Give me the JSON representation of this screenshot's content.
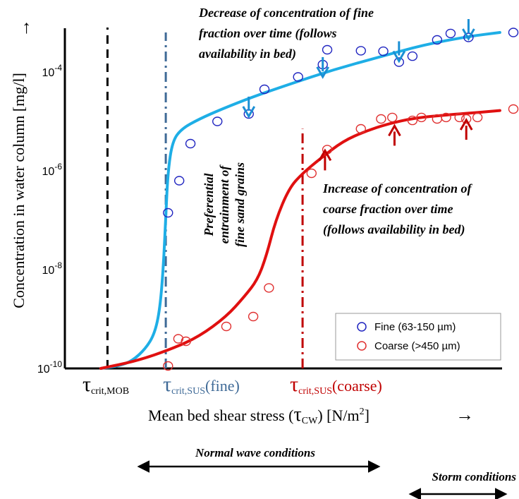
{
  "chart_data": {
    "type": "scatter",
    "title": "",
    "ylabel": "Concentration in water column [mg/l]",
    "xlabel": "Mean bed shear stress (τ_CW) [N/m²]",
    "xlabel_parts": {
      "prefix": "Mean bed shear stress (",
      "symbol": "τ",
      "sub": "CW",
      "mid": ") [N/m",
      "sup": "2",
      "suffix": "]"
    },
    "yscale": "log",
    "ylim_exp": [
      -10,
      -3
    ],
    "xlim": [
      0,
      100
    ],
    "y_ticks": [
      {
        "base": "10",
        "exp": "-10",
        "value_exp": -10
      },
      {
        "base": "10",
        "exp": "-8",
        "value_exp": -8
      },
      {
        "base": "10",
        "exp": "-6",
        "value_exp": -6
      },
      {
        "base": "10",
        "exp": "-4",
        "value_exp": -4
      }
    ],
    "x_threshold_labels": [
      {
        "symbol": "τ",
        "sub": "crit,MOB",
        "suffix": "",
        "x": 8
      },
      {
        "symbol": "τ",
        "sub": "crit,SUS",
        "suffix": "(fine)",
        "x": 22.5
      },
      {
        "symbol": "τ",
        "sub": "crit,SUS",
        "suffix": "(coarse)",
        "x": 53
      }
    ],
    "thresholds": [
      {
        "x": 9.5,
        "y_top_exp": -3.1,
        "color": "#000000",
        "style": "dashed"
      },
      {
        "x": 22.5,
        "y_top_exp": -3.2,
        "color": "#3f6a97",
        "style": "dashdot"
      },
      {
        "x": 53,
        "y_top_exp": -5.15,
        "color": "#c00000",
        "style": "dashdot"
      }
    ],
    "series": [
      {
        "name": "Fine (63-150 µm)",
        "color": "#1f24c0",
        "points": [
          {
            "x": 23,
            "y_exp": -6.85
          },
          {
            "x": 25.5,
            "y_exp": -6.2
          },
          {
            "x": 28,
            "y_exp": -5.45
          },
          {
            "x": 34,
            "y_exp": -5.0
          },
          {
            "x": 41,
            "y_exp": -4.85
          },
          {
            "x": 44.5,
            "y_exp": -4.35
          },
          {
            "x": 52,
            "y_exp": -4.1
          },
          {
            "x": 57.5,
            "y_exp": -3.85
          },
          {
            "x": 58.5,
            "y_exp": -3.55
          },
          {
            "x": 66,
            "y_exp": -3.57
          },
          {
            "x": 71,
            "y_exp": -3.58
          },
          {
            "x": 74.5,
            "y_exp": -3.8
          },
          {
            "x": 77.5,
            "y_exp": -3.68
          },
          {
            "x": 83,
            "y_exp": -3.35
          },
          {
            "x": 86,
            "y_exp": -3.22
          },
          {
            "x": 90,
            "y_exp": -3.3
          },
          {
            "x": 100,
            "y_exp": -3.2
          }
        ]
      },
      {
        "name": "Coarse (>450 µm)",
        "color": "#e03030",
        "points": [
          {
            "x": 23,
            "y_exp": -9.95
          },
          {
            "x": 25.3,
            "y_exp": -9.4
          },
          {
            "x": 27,
            "y_exp": -9.45
          },
          {
            "x": 36,
            "y_exp": -9.15
          },
          {
            "x": 42,
            "y_exp": -8.95
          },
          {
            "x": 45.5,
            "y_exp": -8.37
          },
          {
            "x": 55,
            "y_exp": -6.05
          },
          {
            "x": 58.5,
            "y_exp": -5.57
          },
          {
            "x": 66,
            "y_exp": -5.15
          },
          {
            "x": 70.5,
            "y_exp": -4.95
          },
          {
            "x": 73,
            "y_exp": -4.92
          },
          {
            "x": 77.5,
            "y_exp": -4.98
          },
          {
            "x": 79.5,
            "y_exp": -4.92
          },
          {
            "x": 83,
            "y_exp": -4.95
          },
          {
            "x": 85,
            "y_exp": -4.92
          },
          {
            "x": 88,
            "y_exp": -4.92
          },
          {
            "x": 89.5,
            "y_exp": -4.95
          },
          {
            "x": 92,
            "y_exp": -4.92
          },
          {
            "x": 100,
            "y_exp": -4.75
          }
        ]
      }
    ],
    "curves": [
      {
        "name": "fine trend",
        "color": "#1eaee6",
        "points": [
          {
            "x": 8,
            "y_exp": -10
          },
          {
            "x": 12,
            "y_exp": -9.95
          },
          {
            "x": 15,
            "y_exp": -9.85
          },
          {
            "x": 18,
            "y_exp": -9.6
          },
          {
            "x": 20,
            "y_exp": -9.3
          },
          {
            "x": 21.2,
            "y_exp": -8.8
          },
          {
            "x": 22,
            "y_exp": -7.9
          },
          {
            "x": 22.5,
            "y_exp": -6.9
          },
          {
            "x": 23,
            "y_exp": -6.0
          },
          {
            "x": 24,
            "y_exp": -5.4
          },
          {
            "x": 26,
            "y_exp": -5.15
          },
          {
            "x": 30,
            "y_exp": -4.95
          },
          {
            "x": 35,
            "y_exp": -4.75
          },
          {
            "x": 42,
            "y_exp": -4.5
          },
          {
            "x": 50,
            "y_exp": -4.25
          },
          {
            "x": 60,
            "y_exp": -3.95
          },
          {
            "x": 70,
            "y_exp": -3.7
          },
          {
            "x": 80,
            "y_exp": -3.45
          },
          {
            "x": 90,
            "y_exp": -3.28
          },
          {
            "x": 97,
            "y_exp": -3.2
          }
        ]
      },
      {
        "name": "coarse trend",
        "color": "#e01010",
        "points": [
          {
            "x": 8,
            "y_exp": -10
          },
          {
            "x": 16,
            "y_exp": -9.85
          },
          {
            "x": 24,
            "y_exp": -9.6
          },
          {
            "x": 30,
            "y_exp": -9.35
          },
          {
            "x": 36,
            "y_exp": -8.95
          },
          {
            "x": 40,
            "y_exp": -8.55
          },
          {
            "x": 43,
            "y_exp": -8.2
          },
          {
            "x": 45,
            "y_exp": -7.7
          },
          {
            "x": 47,
            "y_exp": -7.0
          },
          {
            "x": 50,
            "y_exp": -6.35
          },
          {
            "x": 53,
            "y_exp": -6.05
          },
          {
            "x": 57,
            "y_exp": -5.75
          },
          {
            "x": 62,
            "y_exp": -5.4
          },
          {
            "x": 67,
            "y_exp": -5.2
          },
          {
            "x": 72,
            "y_exp": -5.05
          },
          {
            "x": 78,
            "y_exp": -4.93
          },
          {
            "x": 85,
            "y_exp": -4.87
          },
          {
            "x": 92,
            "y_exp": -4.82
          },
          {
            "x": 97,
            "y_exp": -4.78
          }
        ]
      }
    ],
    "arrows": [
      {
        "x": 41,
        "y_exp": -4.87,
        "dir": "down",
        "color": "#1a8fd4"
      },
      {
        "x": 57.5,
        "y_exp": -4.07,
        "dir": "down",
        "color": "#1a8fd4"
      },
      {
        "x": 74.5,
        "y_exp": -3.75,
        "dir": "down",
        "color": "#1a8fd4"
      },
      {
        "x": 90,
        "y_exp": -3.3,
        "dir": "down",
        "color": "#1a8fd4"
      },
      {
        "x": 58,
        "y_exp": -5.62,
        "dir": "up",
        "color": "#c00000"
      },
      {
        "x": 73.5,
        "y_exp": -5.12,
        "dir": "up",
        "color": "#c00000"
      },
      {
        "x": 89.5,
        "y_exp": -5.0,
        "dir": "up",
        "color": "#c00000"
      }
    ],
    "legend": {
      "placement": "bottom-right",
      "entries": [
        "Fine (63-150 µm)",
        "Coarse (>450 µm)"
      ]
    },
    "grid": false,
    "annotations": {
      "fine_note": [
        "Decrease of concentration of fine",
        "fraction over time (follows",
        "availability in bed)"
      ],
      "fine_note_color": "#1a8fd4",
      "coarse_note": [
        "Increase of concentration of",
        "coarse fraction over time",
        "(follows availability in bed)"
      ],
      "coarse_note_color": "#e01010",
      "preferential_note": [
        "Preferential",
        "entrainment of",
        "fine sand grains"
      ]
    },
    "y_axis_arrow": "→",
    "x_axis_arrow": "→",
    "ranges": [
      {
        "label": "Normal wave conditions"
      },
      {
        "label": "Storm conditions"
      }
    ]
  }
}
